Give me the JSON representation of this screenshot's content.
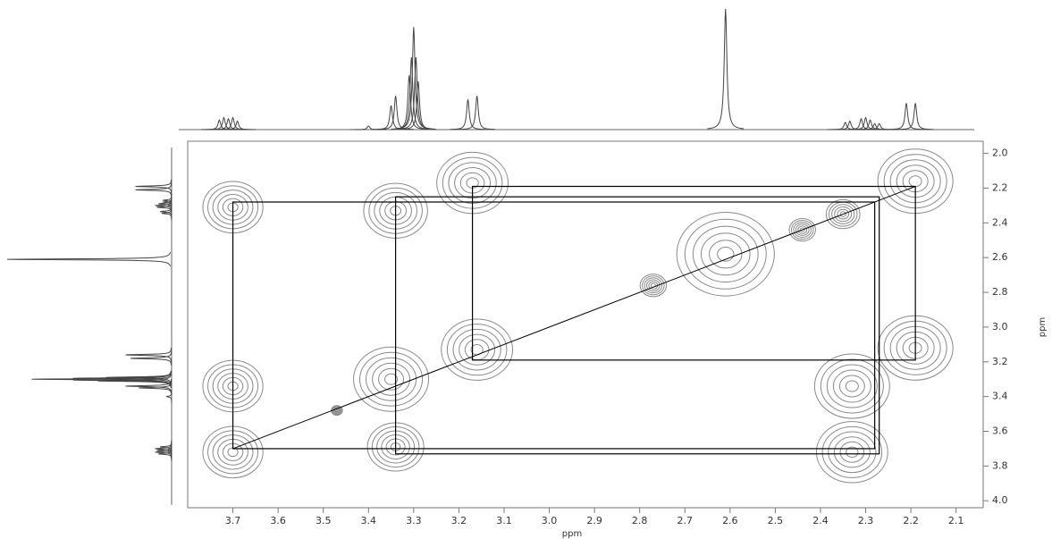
{
  "chart_data": {
    "type": "cosy",
    "x_label": "ppm",
    "y_label": "ppm",
    "xlim": [
      3.8,
      2.04
    ],
    "ylim": [
      1.93,
      4.04
    ],
    "xticks": [
      3.7,
      3.6,
      3.5,
      3.4,
      3.3,
      3.2,
      3.1,
      {
        "value": 3,
        "label": "3.0"
      },
      2.9,
      2.8,
      2.7,
      2.6,
      2.5,
      2.4,
      2.3,
      2.2,
      2.1
    ],
    "yticks": [
      {
        "value": 2,
        "label": "2.0"
      },
      2.2,
      2.4,
      2.6,
      2.8,
      {
        "value": 3,
        "label": "3.0"
      },
      3.2,
      3.4,
      3.6,
      3.8,
      {
        "value": 4,
        "label": "4.0"
      }
    ],
    "contour_color": "#8a8a8a",
    "peaks": {
      "x": [
        3.7,
        3.34,
        3.17,
        2.19,
        2.61,
        3.7,
        3.35,
        3.16,
        2.33,
        2.19,
        3.7,
        3.34,
        2.33,
        2.77,
        2.44,
        2.35,
        3.47
      ],
      "y": [
        2.31,
        2.33,
        2.17,
        2.16,
        2.58,
        3.34,
        3.3,
        3.13,
        3.34,
        3.12,
        3.72,
        3.69,
        3.72,
        2.76,
        2.44,
        2.35,
        3.48
      ],
      "size": [
        0.8,
        0.85,
        0.95,
        1.0,
        1.3,
        0.8,
        1.0,
        0.95,
        1.0,
        1.0,
        0.8,
        0.75,
        0.95,
        0.35,
        0.35,
        0.45,
        0.15
      ]
    },
    "spectrum": {
      "x": [
        3.73,
        3.72,
        3.71,
        3.7,
        3.69,
        3.4,
        3.35,
        3.34,
        3.31,
        3.305,
        3.3,
        3.295,
        3.29,
        3.18,
        3.16,
        2.61,
        2.345,
        2.335,
        2.31,
        2.3,
        2.29,
        2.28,
        2.27,
        2.21,
        2.19
      ],
      "values": [
        8,
        10,
        9,
        10,
        7,
        3,
        20,
        28,
        45,
        60,
        85,
        60,
        40,
        25,
        28,
        100,
        6,
        7,
        9,
        10,
        8,
        5,
        5,
        22,
        22
      ]
    },
    "boxes": [
      {
        "x": [
          3.7,
          2.28
        ],
        "y": [
          2.28,
          3.7
        ]
      },
      {
        "x": [
          3.34,
          2.27
        ],
        "y": [
          2.25,
          3.73
        ]
      },
      {
        "x": [
          3.17,
          2.19
        ],
        "y": [
          2.19,
          3.19
        ]
      }
    ],
    "diagonal": {
      "x": [
        3.7,
        2.19
      ],
      "y": [
        3.7,
        2.19
      ]
    },
    "line_color": "#000000"
  }
}
